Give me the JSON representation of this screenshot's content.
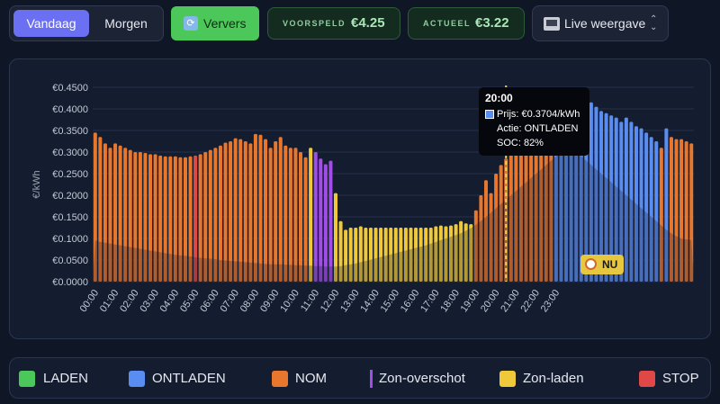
{
  "toolbar": {
    "tabs": [
      {
        "label": "Vandaag",
        "active": true
      },
      {
        "label": "Morgen",
        "active": false
      }
    ],
    "refresh": {
      "icon": "refresh-icon",
      "label": "Ververs"
    },
    "forecast": {
      "caption": "VOORSPELD",
      "value": "€4.25"
    },
    "actual": {
      "caption": "ACTUEEL",
      "value": "€3.22"
    },
    "view": {
      "icon": "monitor-icon",
      "label": "Live weergave"
    }
  },
  "chart_data": {
    "type": "bar",
    "ylabel": "€/kWh",
    "ylim": [
      0,
      0.45
    ],
    "y_ticks": [
      "€0.0000",
      "€0.0500",
      "€0.1000",
      "€0.1500",
      "€0.2000",
      "€0.2500",
      "€0.3000",
      "€0.3500",
      "€0.4000",
      "€0.4500"
    ],
    "x_ticks": [
      "00:00",
      "01:00",
      "02:00",
      "03:00",
      "04:00",
      "05:00",
      "06:00",
      "07:00",
      "08:00",
      "09:00",
      "10:00",
      "11:00",
      "12:00",
      "13:00",
      "14:00",
      "15:00",
      "16:00",
      "17:00",
      "18:00",
      "19:00",
      "20:00",
      "21:00",
      "22:00",
      "23:00"
    ],
    "grid": true,
    "slots_per_hour": 4,
    "values": [
      0.345,
      0.335,
      0.32,
      0.31,
      0.32,
      0.315,
      0.31,
      0.305,
      0.3,
      0.3,
      0.298,
      0.295,
      0.295,
      0.292,
      0.29,
      0.29,
      0.29,
      0.288,
      0.288,
      0.29,
      0.292,
      0.295,
      0.3,
      0.305,
      0.31,
      0.315,
      0.322,
      0.325,
      0.332,
      0.33,
      0.325,
      0.32,
      0.342,
      0.34,
      0.33,
      0.31,
      0.325,
      0.335,
      0.315,
      0.31,
      0.31,
      0.3,
      0.288,
      0.31,
      0.3,
      0.285,
      0.272,
      0.28,
      0.205,
      0.14,
      0.12,
      0.125,
      0.125,
      0.128,
      0.125,
      0.125,
      0.125,
      0.125,
      0.125,
      0.125,
      0.125,
      0.125,
      0.125,
      0.125,
      0.125,
      0.125,
      0.125,
      0.125,
      0.128,
      0.13,
      0.128,
      0.13,
      0.133,
      0.14,
      0.135,
      0.133,
      0.165,
      0.2,
      0.235,
      0.205,
      0.25,
      0.27,
      0.285,
      0.295,
      0.31,
      0.32,
      0.33,
      0.335,
      0.34,
      0.335,
      0.345,
      0.36,
      0.355,
      0.385,
      0.4,
      0.385,
      0.405,
      0.39,
      0.4,
      0.415,
      0.405,
      0.395,
      0.39,
      0.385,
      0.38,
      0.37,
      0.38,
      0.37,
      0.36,
      0.355,
      0.345,
      0.335,
      0.325,
      0.31,
      0.355,
      0.335,
      0.33,
      0.33,
      0.325,
      0.32
    ],
    "actions": [
      "NOM",
      "NOM",
      "NOM",
      "NOM",
      "NOM",
      "NOM",
      "NOM",
      "NOM",
      "NOM",
      "NOM",
      "NOM",
      "NOM",
      "NOM",
      "NOM",
      "NOM",
      "NOM",
      "NOM",
      "NOM",
      "NOM",
      "NOM",
      "STOP",
      "NOM",
      "NOM",
      "NOM",
      "NOM",
      "NOM",
      "NOM",
      "NOM",
      "NOM",
      "NOM",
      "NOM",
      "NOM",
      "NOM",
      "NOM",
      "NOM",
      "NOM",
      "NOM",
      "NOM",
      "NOM",
      "NOM",
      "NOM",
      "NOM",
      "NOM",
      "Zon-laden",
      "Zon-overschot",
      "Zon-overschot",
      "Zon-overschot",
      "Zon-overschot",
      "Zon-laden",
      "Zon-laden",
      "Zon-laden",
      "Zon-laden",
      "Zon-laden",
      "Zon-laden",
      "Zon-laden",
      "Zon-laden",
      "Zon-laden",
      "Zon-laden",
      "Zon-laden",
      "Zon-laden",
      "Zon-laden",
      "Zon-laden",
      "Zon-laden",
      "Zon-laden",
      "Zon-laden",
      "Zon-laden",
      "Zon-laden",
      "Zon-laden",
      "Zon-laden",
      "Zon-laden",
      "Zon-laden",
      "Zon-laden",
      "Zon-laden",
      "Zon-laden",
      "Zon-laden",
      "Zon-laden",
      "NOM",
      "NOM",
      "NOM",
      "NOM",
      "NOM",
      "NOM",
      "NOM",
      "NOM",
      "NOM",
      "NOM",
      "NOM",
      "NOM",
      "NOM",
      "NOM",
      "NOM",
      "NOM",
      "ONTLADEN",
      "ONTLADEN",
      "ONTLADEN",
      "ONTLADEN",
      "ONTLADEN",
      "ONTLADEN",
      "ONTLADEN",
      "ONTLADEN",
      "ONTLADEN",
      "ONTLADEN",
      "ONTLADEN",
      "ONTLADEN",
      "ONTLADEN",
      "ONTLADEN",
      "ONTLADEN",
      "ONTLADEN",
      "ONTLADEN",
      "ONTLADEN",
      "ONTLADEN",
      "ONTLADEN",
      "ONTLADEN",
      "NOM",
      "ONTLADEN",
      "NOM",
      "NOM",
      "NOM",
      "NOM",
      "NOM"
    ],
    "soc_area_values": [
      0.095,
      0.092,
      0.09,
      0.088,
      0.086,
      0.084,
      0.082,
      0.08,
      0.078,
      0.076,
      0.074,
      0.072,
      0.07,
      0.068,
      0.066,
      0.064,
      0.062,
      0.061,
      0.06,
      0.058,
      0.056,
      0.055,
      0.054,
      0.053,
      0.052,
      0.05,
      0.049,
      0.048,
      0.047,
      0.046,
      0.045,
      0.044,
      0.043,
      0.042,
      0.041,
      0.04,
      0.04,
      0.04,
      0.039,
      0.039,
      0.038,
      0.038,
      0.037,
      0.037,
      0.036,
      0.036,
      0.035,
      0.035,
      0.035,
      0.036,
      0.038,
      0.04,
      0.042,
      0.045,
      0.048,
      0.051,
      0.054,
      0.057,
      0.06,
      0.063,
      0.066,
      0.069,
      0.072,
      0.075,
      0.078,
      0.081,
      0.084,
      0.088,
      0.092,
      0.096,
      0.1,
      0.104,
      0.108,
      0.112,
      0.118,
      0.124,
      0.132,
      0.14,
      0.15,
      0.16,
      0.17,
      0.18,
      0.19,
      0.2,
      0.21,
      0.22,
      0.23,
      0.24,
      0.25,
      0.26,
      0.27,
      0.28,
      0.29,
      0.3,
      0.305,
      0.305,
      0.3,
      0.29,
      0.28,
      0.27,
      0.26,
      0.25,
      0.24,
      0.23,
      0.22,
      0.21,
      0.2,
      0.19,
      0.18,
      0.17,
      0.16,
      0.15,
      0.14,
      0.13,
      0.12,
      0.112,
      0.105,
      0.1,
      0.098,
      0.096
    ],
    "now_marker": "NU",
    "tooltip": {
      "time": "20:00",
      "price": "Prijs: €0.3704/kWh",
      "action": "Actie: ONTLADEN",
      "soc": "SOC: 82%"
    },
    "legend": [
      {
        "label": "LADEN",
        "color": "#4cc85a",
        "kind": "square"
      },
      {
        "label": "ONTLADEN",
        "color": "#5a8df2",
        "kind": "square"
      },
      {
        "label": "NOM",
        "color": "#e8772e",
        "kind": "square"
      },
      {
        "label": "Zon-overschot",
        "color": "#a24de8",
        "kind": "line"
      },
      {
        "label": "Zon-laden",
        "color": "#f0c93a",
        "kind": "square"
      },
      {
        "label": "STOP",
        "color": "#e04848",
        "kind": "square"
      }
    ]
  }
}
